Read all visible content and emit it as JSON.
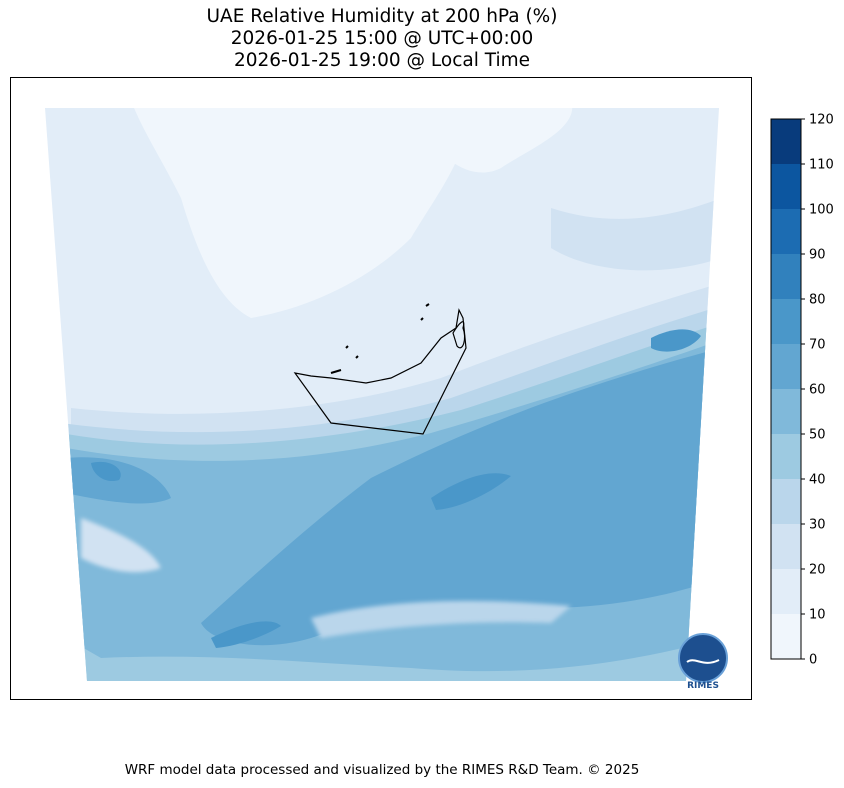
{
  "title": {
    "line1": "UAE Relative Humidity at 200 hPa (%)",
    "line2": "2026-01-25 15:00 @ UTC+00:00",
    "line3": "2026-01-25 19:00 @ Local Time"
  },
  "colorbar": {
    "ticks": [
      "0",
      "10",
      "20",
      "30",
      "40",
      "50",
      "60",
      "70",
      "80",
      "90",
      "100",
      "110",
      "120"
    ],
    "colors": [
      "#f0f6fc",
      "#e2edf8",
      "#d1e2f2",
      "#bad6eb",
      "#9dcae1",
      "#80b9da",
      "#62a6d1",
      "#4a97c9",
      "#3181bd",
      "#1c6cb2",
      "#0c56a0",
      "#083b7c"
    ]
  },
  "logo": {
    "text": "RIMES"
  },
  "footer": {
    "credit": "WRF model data processed and visualized by the RIMES R&D Team. © 2025"
  }
}
